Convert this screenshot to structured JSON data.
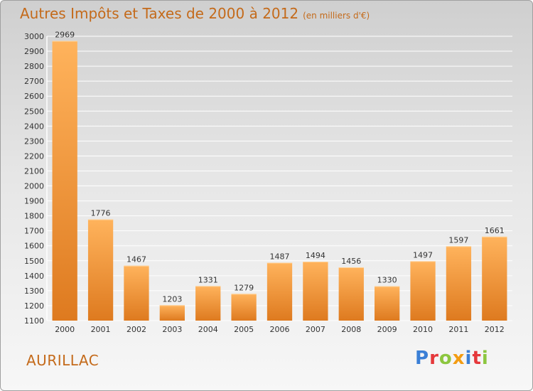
{
  "title": "Autres Impôts et Taxes de 2000 à 2012",
  "subtitle": "(en milliers d'€)",
  "commune": "AURILLAC",
  "logo": {
    "letters": [
      {
        "ch": "P",
        "color": "#3a7fd6"
      },
      {
        "ch": "r",
        "color": "#e5383b"
      },
      {
        "ch": "o",
        "color": "#8cc63f"
      },
      {
        "ch": "x",
        "color": "#f39c12"
      },
      {
        "ch": "i",
        "color": "#3a7fd6"
      },
      {
        "ch": "t",
        "color": "#e5383b"
      },
      {
        "ch": "i",
        "color": "#8cc63f"
      }
    ]
  },
  "colors": {
    "accent": "#c46a1a",
    "bar_light": "#ffb35c",
    "bar_dark": "#de7a1f"
  },
  "chart_data": {
    "type": "bar",
    "title": "Autres Impôts et Taxes de 2000 à 2012",
    "subtitle": "(en milliers d'€)",
    "categories": [
      "2000",
      "2001",
      "2002",
      "2003",
      "2004",
      "2005",
      "2006",
      "2007",
      "2008",
      "2009",
      "2010",
      "2011",
      "2012"
    ],
    "values": [
      2969,
      1776,
      1467,
      1203,
      1331,
      1279,
      1487,
      1494,
      1456,
      1330,
      1497,
      1597,
      1661
    ],
    "ylim": [
      1100,
      3000
    ],
    "yticks": [
      1100,
      1200,
      1300,
      1400,
      1500,
      1600,
      1700,
      1800,
      1900,
      2000,
      2100,
      2200,
      2300,
      2400,
      2500,
      2600,
      2700,
      2800,
      2900,
      3000
    ],
    "grid": true
  }
}
